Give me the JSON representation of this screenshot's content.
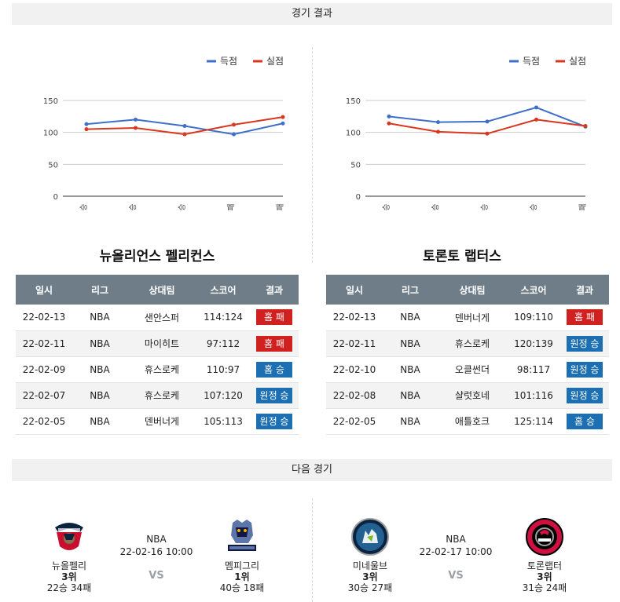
{
  "results_header": "경기 결과",
  "next_header": "다음 경기",
  "legend": {
    "score": "득점",
    "conceded": "실점"
  },
  "colors": {
    "score": "#3f6fc8",
    "conceded": "#d9361f",
    "win": "#1d6fb4",
    "loss": "#d0201f"
  },
  "chart_data": [
    {
      "type": "line",
      "categories": [
        "승",
        "승",
        "승",
        "패",
        "패"
      ],
      "series": [
        {
          "name": "득점",
          "values": [
            113,
            120,
            110,
            97,
            114
          ]
        },
        {
          "name": "실점",
          "values": [
            105,
            107,
            97,
            112,
            124
          ]
        }
      ],
      "yticks": [
        "0",
        "50",
        "100",
        "150"
      ],
      "ylim": [
        0,
        150
      ],
      "legend_position": "top-right",
      "grid": true
    },
    {
      "type": "line",
      "categories": [
        "승",
        "승",
        "승",
        "승",
        "패"
      ],
      "series": [
        {
          "name": "득점",
          "values": [
            125,
            116,
            117,
            139,
            109
          ]
        },
        {
          "name": "실점",
          "values": [
            114,
            101,
            98,
            120,
            110
          ]
        }
      ],
      "yticks": [
        "0",
        "50",
        "100",
        "150"
      ],
      "ylim": [
        0,
        150
      ],
      "legend_position": "top-right",
      "grid": true
    }
  ],
  "columns": [
    "일시",
    "리그",
    "상대팀",
    "스코어",
    "결과"
  ],
  "teams": [
    {
      "title": "뉴올리언스 펠리컨스",
      "rows": [
        {
          "date": "22-02-13",
          "league": "NBA",
          "opponent": "샌안스퍼",
          "score": "114:124",
          "result": "홈 패",
          "kind": "loss"
        },
        {
          "date": "22-02-11",
          "league": "NBA",
          "opponent": "마이히트",
          "score": "97:112",
          "result": "홈 패",
          "kind": "loss"
        },
        {
          "date": "22-02-09",
          "league": "NBA",
          "opponent": "휴스로케",
          "score": "110:97",
          "result": "홈 승",
          "kind": "win"
        },
        {
          "date": "22-02-07",
          "league": "NBA",
          "opponent": "휴스로케",
          "score": "107:120",
          "result": "원정 승",
          "kind": "win"
        },
        {
          "date": "22-02-05",
          "league": "NBA",
          "opponent": "덴버너게",
          "score": "105:113",
          "result": "원정 승",
          "kind": "win"
        }
      ]
    },
    {
      "title": "토론토 랩터스",
      "rows": [
        {
          "date": "22-02-13",
          "league": "NBA",
          "opponent": "덴버너게",
          "score": "109:110",
          "result": "홈 패",
          "kind": "loss"
        },
        {
          "date": "22-02-11",
          "league": "NBA",
          "opponent": "휴스로케",
          "score": "120:139",
          "result": "원정 승",
          "kind": "win"
        },
        {
          "date": "22-02-10",
          "league": "NBA",
          "opponent": "오클썬더",
          "score": "98:117",
          "result": "원정 승",
          "kind": "win"
        },
        {
          "date": "22-02-08",
          "league": "NBA",
          "opponent": "샬럿호네",
          "score": "101:116",
          "result": "원정 승",
          "kind": "win"
        },
        {
          "date": "22-02-05",
          "league": "NBA",
          "opponent": "애틀호크",
          "score": "125:114",
          "result": "홈 승",
          "kind": "win"
        }
      ]
    }
  ],
  "next_games": [
    {
      "league": "NBA",
      "datetime": "22-02-16 10:00",
      "vs": "VS",
      "home": {
        "name": "뉴올펠리",
        "rank": "3위",
        "record": "22승 34패",
        "logo": "pelicans-logo"
      },
      "away": {
        "name": "멤피그리",
        "rank": "1위",
        "record": "40승 18패",
        "logo": "grizzlies-logo"
      }
    },
    {
      "league": "NBA",
      "datetime": "22-02-17 10:00",
      "vs": "VS",
      "home": {
        "name": "미네울브",
        "rank": "3위",
        "record": "30승 27패",
        "logo": "timberwolves-logo"
      },
      "away": {
        "name": "토론랩터",
        "rank": "3위",
        "record": "31승 24패",
        "logo": "raptors-logo"
      }
    }
  ]
}
